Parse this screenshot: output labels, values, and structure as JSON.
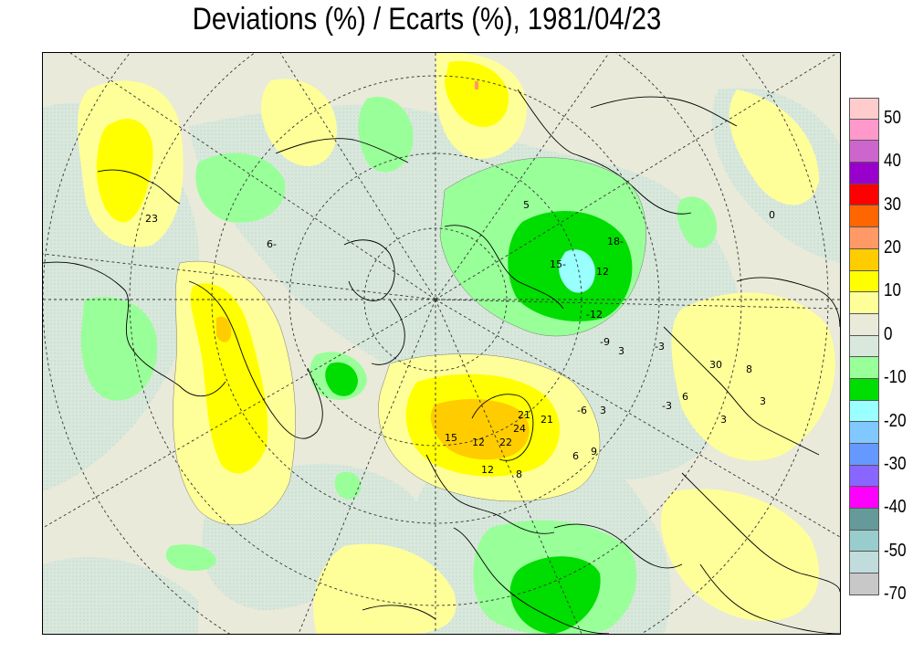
{
  "title": "Deviations (%) / Ecarts (%), 1981/04/23",
  "legend": {
    "colors": [
      "#ffcccc",
      "#ff99cc",
      "#cc66cc",
      "#9900cc",
      "#ff0000",
      "#ff6600",
      "#ff9966",
      "#ffcc00",
      "#ffff00",
      "#ffff99",
      "#e9ead9",
      "#d9e8dc",
      "#99ff99",
      "#00dd00",
      "#99ffff",
      "#80c8ff",
      "#6699ff",
      "#8866ff",
      "#ff00ff",
      "#669999",
      "#99cccc",
      "#c0dcdc",
      "#c8c8c8"
    ],
    "tick_labels": [
      "50",
      "40",
      "30",
      "20",
      "10",
      "0",
      "-10",
      "-20",
      "-30",
      "-40",
      "-50",
      "-70"
    ]
  },
  "map": {
    "projection": "polar-stereographic",
    "contour_labels": [
      "23",
      "6-",
      "5",
      "18-",
      "15-",
      "12",
      "-3",
      "0",
      "3",
      "-6",
      "-9",
      "-12",
      "21",
      "24",
      "15",
      "6",
      "9",
      "22",
      "12",
      "8",
      "3",
      "12",
      "21",
      "6",
      "3",
      "-3",
      "3",
      "30",
      "8"
    ]
  }
}
